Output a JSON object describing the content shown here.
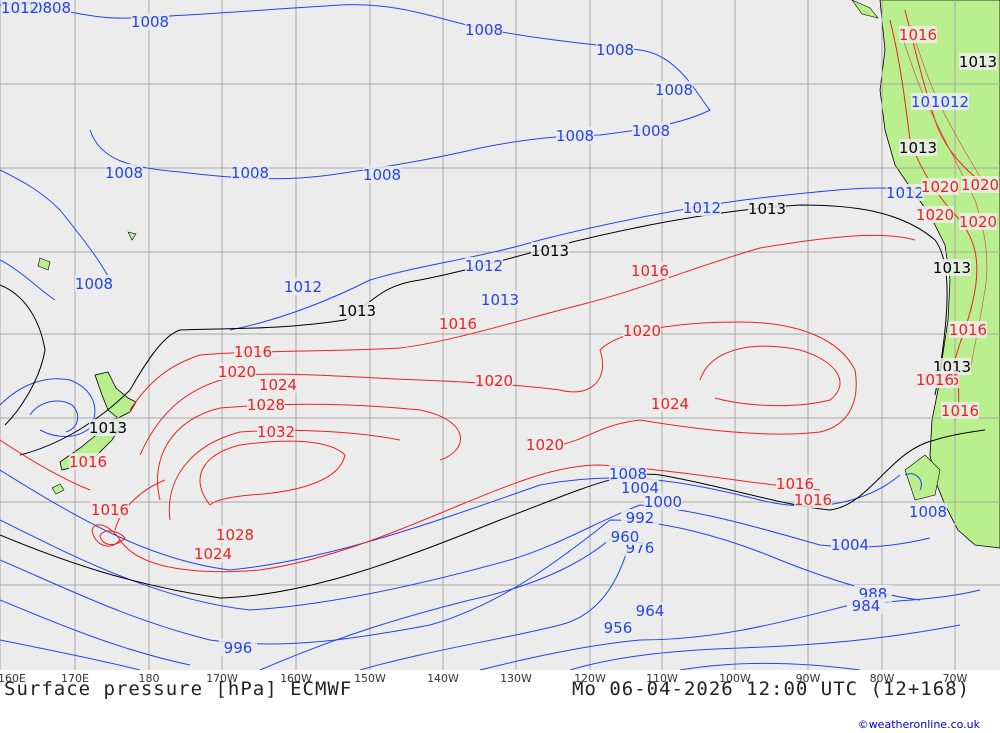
{
  "map_title": "Surface pressure [hPa] ECMWF",
  "valid_time": "Mo 06-04-2026 12:00 UTC (12+168)",
  "credit": "©weatheronline.co.uk",
  "longitude_labels": [
    "160E",
    "170E",
    "180",
    "170W",
    "160W",
    "150W",
    "140W",
    "130W",
    "120W",
    "110W",
    "100W",
    "90W",
    "80W",
    "70W"
  ],
  "isobar_labels": {
    "blue": [
      "1008",
      "1008",
      "1008",
      "1008",
      "1008",
      "1008",
      "1008",
      "1008",
      "1008",
      "1008",
      "1008",
      "1008",
      "1012",
      "1012",
      "1012",
      "1012",
      "1012",
      "1004",
      "1000",
      "992",
      "984",
      "976",
      "964",
      "960",
      "956",
      "988",
      "984",
      "996",
      "1008",
      "1004",
      "1008",
      "1012",
      "1012",
      "1013"
    ],
    "black": [
      "1013",
      "1013",
      "1013",
      "1013",
      "1013",
      "1013",
      "1013",
      "1013"
    ],
    "red": [
      "1016",
      "1016",
      "1016",
      "1016",
      "1016",
      "1016",
      "1016",
      "1016",
      "1020",
      "1020",
      "1020",
      "1020",
      "1020",
      "1020",
      "1024",
      "1024",
      "1024",
      "1028",
      "1028",
      "1032",
      "1016",
      "1016",
      "1020",
      "1020",
      "1016",
      "1016"
    ]
  },
  "colors": {
    "sea": "#ececec",
    "land": "#b9f08d",
    "grid": "#a8a8a8",
    "low_isobar": "#2244ee",
    "mid_isobar": "#000000",
    "high_isobar": "#ee2222"
  }
}
